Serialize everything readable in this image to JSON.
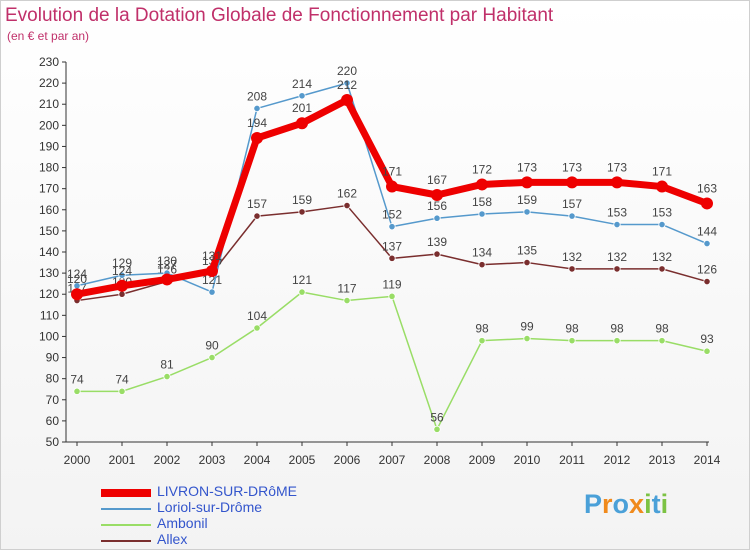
{
  "chart_data": {
    "type": "line",
    "title": "Evolution de la Dotation Globale de Fonctionnement par Habitant",
    "subtitle": "(en € et par an)",
    "xlabel": "",
    "ylabel": "",
    "ylim": [
      50,
      230
    ],
    "y_ticks": [
      "50",
      "60",
      "70",
      "80",
      "90",
      "100",
      "110",
      "120",
      "130",
      "140",
      "150",
      "160",
      "170",
      "180",
      "190",
      "200",
      "210",
      "220",
      "230"
    ],
    "categories": [
      "2000",
      "2001",
      "2002",
      "2003",
      "2004",
      "2005",
      "2006",
      "2007",
      "2008",
      "2009",
      "2010",
      "2011",
      "2012",
      "2013",
      "2014"
    ],
    "series": [
      {
        "name": "Allex",
        "color": "#7a2e2e",
        "values": [
          117,
          120,
          126,
          130,
          157,
          159,
          162,
          137,
          139,
          134,
          135,
          132,
          132,
          132,
          126
        ],
        "labels": [
          "117",
          "120",
          "126",
          "130",
          "157",
          "159",
          "162",
          "137",
          "139",
          "134",
          "135",
          "132",
          "132",
          "132",
          "126"
        ]
      },
      {
        "name": "Ambonil",
        "color": "#99dd66",
        "values": [
          74,
          74,
          81,
          90,
          104,
          121,
          117,
          119,
          56,
          98,
          99,
          98,
          98,
          98,
          93
        ],
        "labels": [
          "74",
          "74",
          "81",
          "90",
          "104",
          "121",
          "117",
          "119",
          "56",
          "98",
          "99",
          "98",
          "98",
          "98",
          "93"
        ]
      },
      {
        "name": "Loriol-sur-Drôme",
        "color": "#5599cc",
        "values": [
          124,
          129,
          130,
          121,
          208,
          214,
          220,
          152,
          156,
          158,
          159,
          157,
          153,
          153,
          144
        ],
        "labels": [
          "124",
          "129",
          "130",
          "121",
          "208",
          "214",
          "220",
          "152",
          "156",
          "158",
          "159",
          "157",
          "153",
          "153",
          "144"
        ]
      },
      {
        "name": "LIVRON-SUR-DRôME",
        "color": "#ee0000",
        "values": [
          120,
          124,
          127,
          131,
          194,
          201,
          212,
          171,
          167,
          172,
          173,
          173,
          173,
          171,
          163
        ],
        "labels": [
          "120",
          "124",
          "127",
          "131",
          "194",
          "201",
          "212",
          "171",
          "167",
          "172",
          "173",
          "173",
          "173",
          "171",
          "163"
        ]
      }
    ],
    "legend": [
      "LIVRON-SUR-DRôME",
      "Loriol-sur-Drôme",
      "Ambonil",
      "Allex"
    ],
    "legend_position": "bottom-left",
    "grid": false
  },
  "logo_text": [
    "P",
    "r",
    "o",
    "x",
    "i",
    "t",
    "i"
  ],
  "logo_colors": [
    "#4aa0d8",
    "#f08a1c",
    "#4aa0d8",
    "#f08a1c",
    "#7cc243",
    "#4aa0d8",
    "#7cc243"
  ]
}
